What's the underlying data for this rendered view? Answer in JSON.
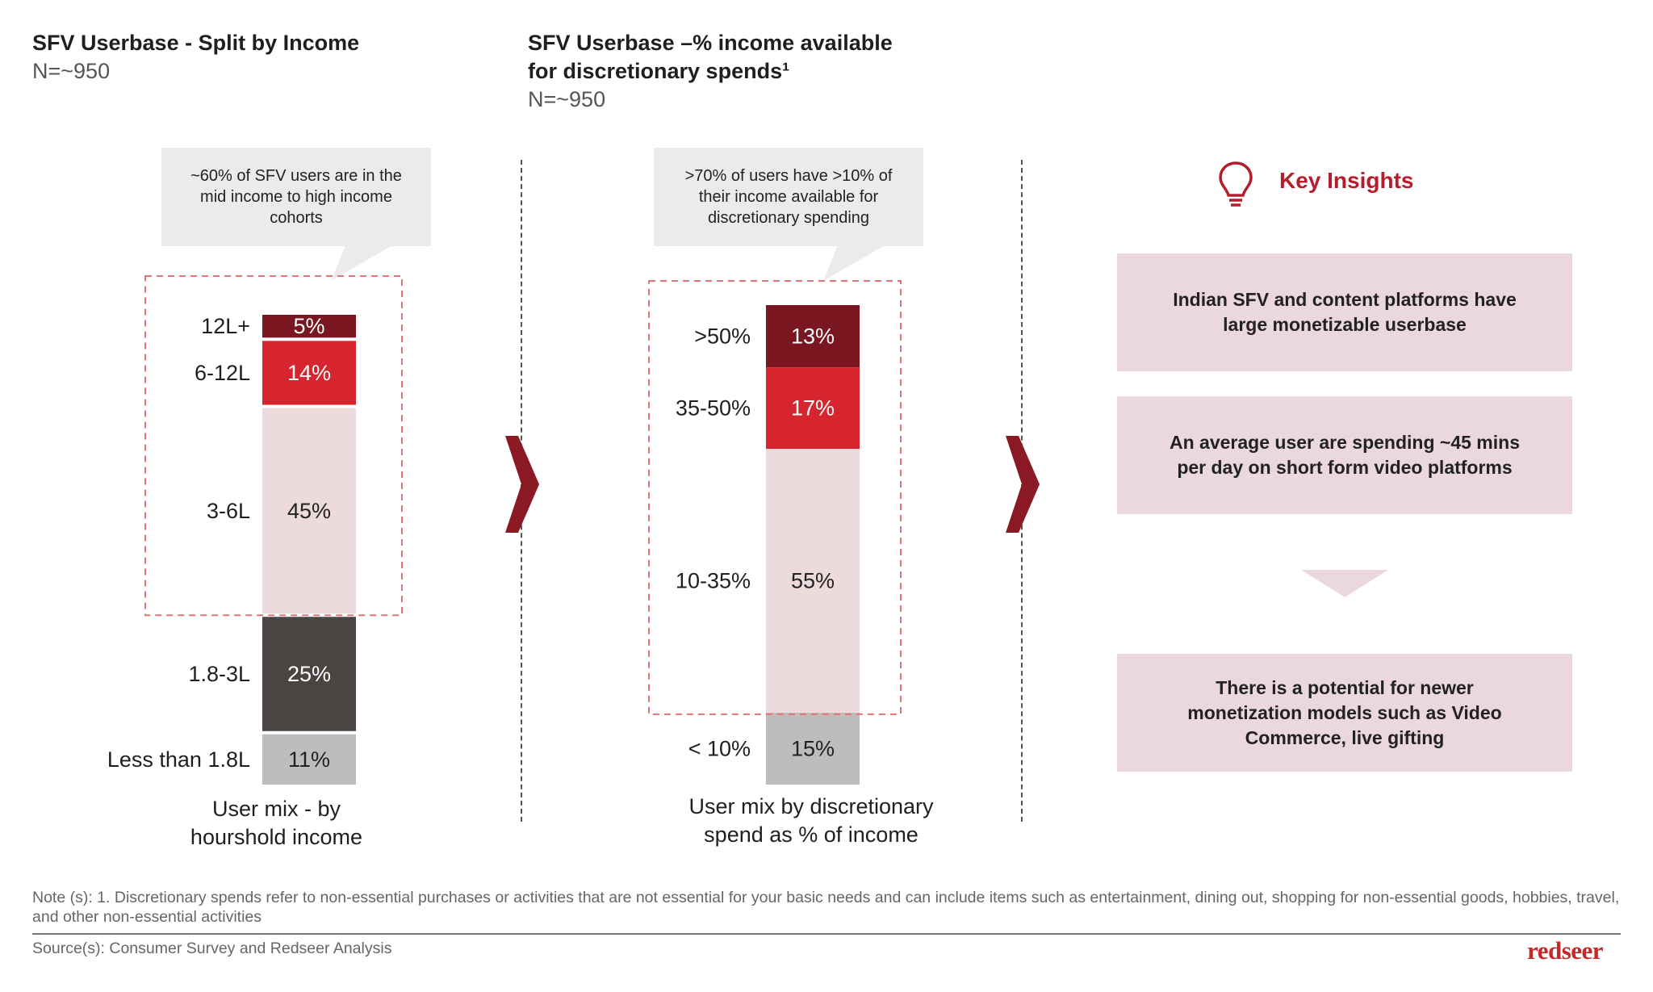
{
  "left_panel": {
    "title": "SFV Userbase - Split by Income",
    "subtitle": "N=~950",
    "callout": "~60% of SFV users are in the mid income to high income cohorts"
  },
  "middle_panel": {
    "title_line1": "SFV Userbase –% income available",
    "title_line2": "for discretionary spends¹",
    "subtitle": "N=~950",
    "callout": ">70% of users have >10% of their income available for discretionary spending"
  },
  "key_insights": {
    "title": "Key Insights",
    "icon": "lightbulb-icon",
    "items": [
      "Indian SFV and content platforms have large monetizable userbase",
      "An average user are spending ~45 mins per day on short form video platforms",
      "There is a potential for newer monetization models such as Video Commerce, live gifting"
    ]
  },
  "chart_data": [
    {
      "type": "bar",
      "stacked": true,
      "categories": [
        "12L+",
        "6-12L",
        "3-6L",
        "1.8-3L",
        "Less than 1.8L"
      ],
      "values": [
        5,
        14,
        45,
        25,
        11
      ],
      "data_labels": [
        "5%",
        "14%",
        "45%",
        "25%",
        "11%"
      ],
      "colors": [
        "#7a1620",
        "#d6252f",
        "#eddadd",
        "#4a4443",
        "#bfbcbc"
      ],
      "label_colors": [
        "#ffffff",
        "#ffffff",
        "#222222",
        "#ffffff",
        "#222222"
      ],
      "xlabel_line1": "User mix - by",
      "xlabel_line2": "hourshold income",
      "highlighted_categories": [
        "12L+",
        "6-12L",
        "3-6L"
      ]
    },
    {
      "type": "bar",
      "stacked": true,
      "categories": [
        ">50%",
        "35-50%",
        "10-35%",
        "< 10%"
      ],
      "values": [
        13,
        17,
        55,
        15
      ],
      "data_labels": [
        "13%",
        "17%",
        "55%",
        "15%"
      ],
      "colors": [
        "#7a1620",
        "#d6252f",
        "#eddadd",
        "#bfbcbc"
      ],
      "label_colors": [
        "#ffffff",
        "#ffffff",
        "#222222",
        "#222222"
      ],
      "xlabel_line1": "User mix by discretionary",
      "xlabel_line2": "spend as % of income",
      "highlighted_categories": [
        ">50%",
        "35-50%",
        "10-35%"
      ]
    }
  ],
  "footer": {
    "note": "Note (s): 1. Discretionary spends refer to non-essential purchases or activities that are not essential for your basic needs and can include items such as entertainment, dining out, shopping for non-essential goods, hobbies, travel, and other non-essential activities",
    "source": "Source(s): Consumer Survey and Redseer Analysis",
    "logo": "redseer"
  },
  "colors": {
    "accent": "#b71c2c",
    "dark_red": "#7a1620",
    "red": "#d6252f",
    "pink": "#eddadd",
    "insight_bg": "#ead8dc"
  }
}
